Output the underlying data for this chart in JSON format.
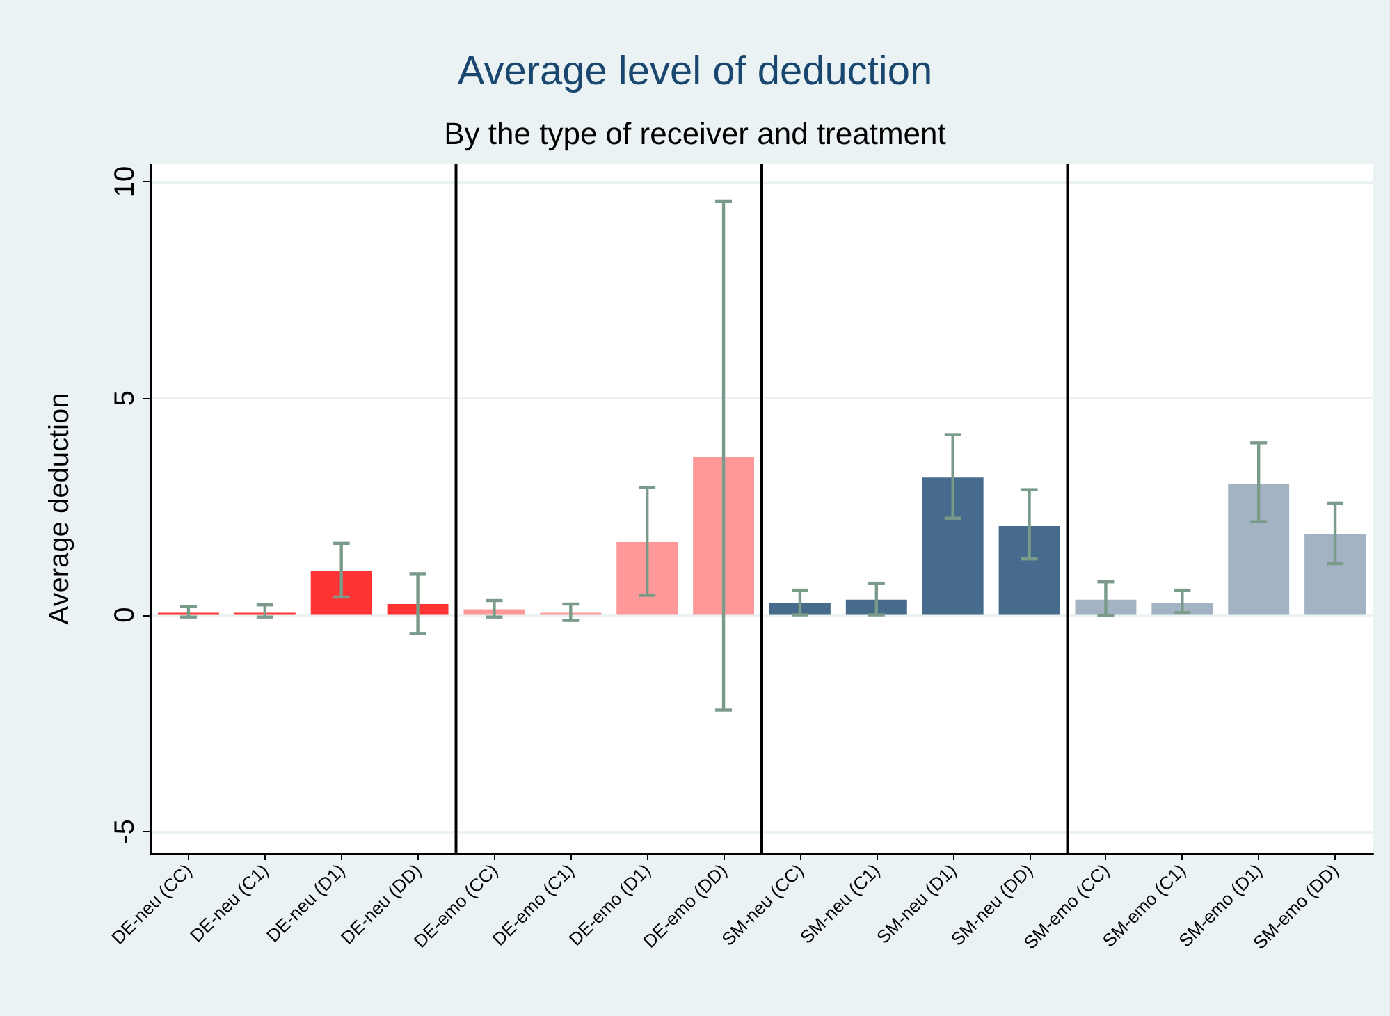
{
  "chart_data": {
    "type": "bar",
    "title": "Average level of deduction",
    "subtitle": "By the type of receiver and treatment",
    "ylabel": "Average deduction",
    "categories": [
      "DE-neu (CC)",
      "DE-neu (C1)",
      "DE-neu (D1)",
      "DE-neu (DD)",
      "DE-emo (CC)",
      "DE-emo (C1)",
      "DE-emo (D1)",
      "DE-emo (DD)",
      "SM-neu (CC)",
      "SM-neu (C1)",
      "SM-neu (D1)",
      "SM-neu (DD)",
      "SM-emo (CC)",
      "SM-emo (C1)",
      "SM-emo (D1)",
      "SM-emo (DD)"
    ],
    "values": [
      0.05,
      0.05,
      1.02,
      0.25,
      0.13,
      0.05,
      1.68,
      3.65,
      0.28,
      0.35,
      3.17,
      2.05,
      0.35,
      0.28,
      3.02,
      1.86
    ],
    "colors": [
      "#ff3333",
      "#ff3333",
      "#ff3333",
      "#ff3333",
      "#ff9999",
      "#ff9999",
      "#ff9999",
      "#ff9999",
      "#476b8c",
      "#476b8c",
      "#476b8c",
      "#476b8c",
      "#a3b3c4",
      "#a3b3c4",
      "#a3b3c4",
      "#a3b3c4"
    ],
    "errors": [
      [
        -0.05,
        0.19
      ],
      [
        -0.05,
        0.23
      ],
      [
        0.41,
        1.65
      ],
      [
        -0.43,
        0.95
      ],
      [
        -0.05,
        0.33
      ],
      [
        -0.13,
        0.25
      ],
      [
        0.45,
        2.94
      ],
      [
        -2.2,
        9.55
      ],
      [
        0,
        0.57
      ],
      [
        0,
        0.73
      ],
      [
        2.23,
        4.16
      ],
      [
        1.29,
        2.89
      ],
      [
        -0.02,
        0.76
      ],
      [
        0.05,
        0.57
      ],
      [
        2.15,
        3.97
      ],
      [
        1.18,
        2.58
      ]
    ],
    "ylim": [
      -5.5,
      10.4
    ],
    "yticks": [
      -5,
      0,
      5,
      10
    ],
    "grid": "y"
  }
}
